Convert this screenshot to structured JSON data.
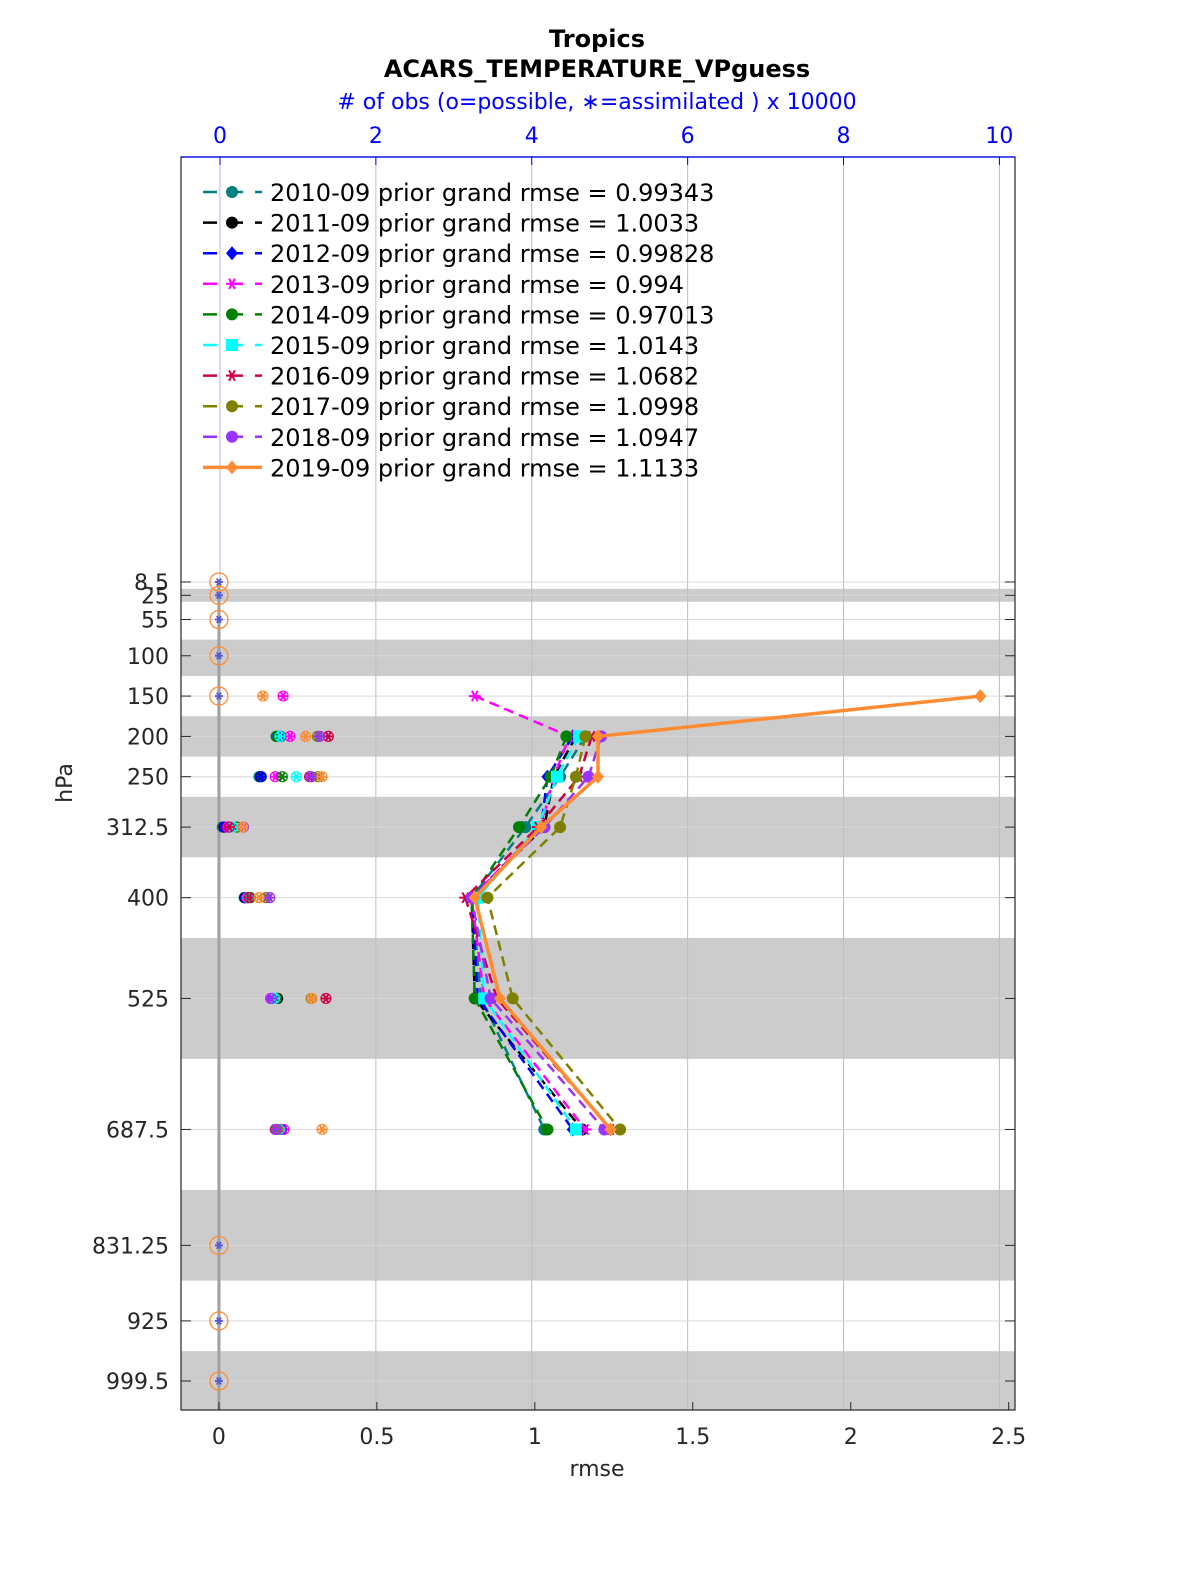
{
  "chart_data": {
    "type": "line",
    "title": "Tropics",
    "subtitle": "ACARS_TEMPERATURE_VPguess",
    "top_axis_label": "# of obs (o=possible, ∗=assimilated ) x 10000",
    "xlabel": "rmse",
    "ylabel": "hPa",
    "xlim": [
      -0.12,
      2.52
    ],
    "top_xlim": [
      -0.5,
      10.2
    ],
    "x_ticks": [
      "0",
      "0.5",
      "1",
      "1.5",
      "2",
      "2.5"
    ],
    "top_ticks": [
      "0",
      "2",
      "4",
      "6",
      "8",
      "10"
    ],
    "y_ticks": [
      "8.5",
      "25",
      "55",
      "100",
      "150",
      "200",
      "250",
      "312.5",
      "400",
      "525",
      "687.5",
      "831.25",
      "925",
      "999.5"
    ],
    "levels": [
      8.5,
      25,
      55,
      100,
      150,
      200,
      250,
      312.5,
      400,
      525,
      687.5,
      831.25,
      925,
      999.5
    ],
    "gray_bands": [
      [
        17,
        33
      ],
      [
        80,
        125
      ],
      [
        175,
        225
      ],
      [
        275,
        350
      ],
      [
        450,
        600
      ],
      [
        762.5,
        875
      ],
      [
        962.5,
        1037
      ]
    ],
    "legend_position": "top-left",
    "grid": true,
    "series": [
      {
        "name": "2010-09 prior grand rmse = 0.99343",
        "color": "#008080",
        "marker": "circle",
        "levels": [
          200,
          250,
          312.5,
          400,
          525,
          687.5
        ],
        "rmse": [
          1.16,
          1.08,
          0.97,
          0.8,
          0.83,
          1.03
        ],
        "possible": [
          0.76,
          0.5,
          0.03,
          0.31,
          0.73,
          0.77
        ],
        "assimilated": [
          0.76,
          0.5,
          0.03,
          0.31,
          0.73,
          0.77
        ]
      },
      {
        "name": "2011-09 prior grand rmse = 1.0033",
        "color": "#000000",
        "marker": "circle",
        "levels": [
          200,
          250,
          312.5,
          400,
          525,
          687.5
        ],
        "rmse": [
          1.13,
          1.06,
          1.03,
          0.8,
          0.81,
          1.15
        ],
        "possible": [
          0.78,
          0.52,
          0.05,
          0.32,
          0.74,
          0.78
        ],
        "assimilated": [
          0.78,
          0.52,
          0.05,
          0.32,
          0.74,
          0.78
        ]
      },
      {
        "name": "2012-09 prior grand rmse = 0.99828",
        "color": "#0000ff",
        "marker": "diamond",
        "levels": [
          200,
          250,
          312.5,
          400,
          525,
          687.5
        ],
        "rmse": [
          1.12,
          1.04,
          1.02,
          0.8,
          0.82,
          1.12
        ],
        "possible": [
          0.74,
          0.53,
          0.06,
          0.33,
          0.68,
          0.79
        ],
        "assimilated": [
          0.74,
          0.53,
          0.06,
          0.33,
          0.68,
          0.79
        ]
      },
      {
        "name": "2013-09 prior grand rmse = 0.994",
        "color": "#ff00ff",
        "marker": "star",
        "levels": [
          150,
          200,
          250,
          312.5,
          400,
          525,
          687.5
        ],
        "rmse": [
          0.81,
          1.11,
          1.06,
          1.02,
          0.8,
          0.84,
          1.16
        ],
        "possible": [
          0.81,
          0.9,
          0.71,
          0.1,
          0.35,
          0.65,
          0.82
        ],
        "assimilated": [
          0.81,
          0.9,
          0.71,
          0.1,
          0.35,
          0.65,
          0.82
        ]
      },
      {
        "name": "2014-09 prior grand rmse = 0.97013",
        "color": "#008000",
        "marker": "circle",
        "levels": [
          200,
          250,
          312.5,
          400,
          525,
          687.5
        ],
        "rmse": [
          1.1,
          1.05,
          0.95,
          0.8,
          0.81,
          1.04
        ],
        "possible": [
          0.72,
          0.8,
          0.22,
          0.39,
          0.72,
          0.73
        ],
        "assimilated": [
          0.72,
          0.8,
          0.22,
          0.39,
          0.72,
          0.73
        ]
      },
      {
        "name": "2015-09 prior grand rmse = 1.0143",
        "color": "#00ffff",
        "marker": "square",
        "levels": [
          200,
          250,
          312.5,
          400,
          525,
          687.5
        ],
        "rmse": [
          1.14,
          1.07,
          1.01,
          0.82,
          0.84,
          1.13
        ],
        "possible": [
          0.77,
          0.98,
          0.16,
          0.36,
          0.7,
          0.76
        ],
        "assimilated": [
          0.77,
          0.98,
          0.16,
          0.36,
          0.7,
          0.76
        ]
      },
      {
        "name": "2016-09 prior grand rmse = 1.0682",
        "color": "#cc0044",
        "marker": "asterisk",
        "levels": [
          200,
          250,
          312.5,
          400,
          525,
          687.5
        ],
        "rmse": [
          1.18,
          1.14,
          1.01,
          0.78,
          0.88,
          1.24
        ],
        "possible": [
          1.39,
          1.15,
          0.12,
          0.37,
          1.36,
          0.71
        ],
        "assimilated": [
          1.39,
          1.15,
          0.12,
          0.37,
          1.36,
          0.71
        ]
      },
      {
        "name": "2017-09 prior grand rmse = 1.0998",
        "color": "#808000",
        "marker": "circle",
        "levels": [
          200,
          250,
          312.5,
          400,
          525,
          687.5
        ],
        "rmse": [
          1.16,
          1.13,
          1.08,
          0.85,
          0.93,
          1.27
        ],
        "possible": [
          1.25,
          1.26,
          0.3,
          0.59,
          1.17,
          0.74
        ],
        "assimilated": [
          1.25,
          1.26,
          0.3,
          0.59,
          1.17,
          0.74
        ]
      },
      {
        "name": "2018-09 prior grand rmse = 1.0947",
        "color": "#9933ff",
        "marker": "circle",
        "levels": [
          200,
          250,
          312.5,
          400,
          525,
          687.5
        ],
        "rmse": [
          1.21,
          1.17,
          1.03,
          0.8,
          0.86,
          1.22
        ],
        "possible": [
          1.28,
          1.17,
          0.3,
          0.64,
          0.66,
          0.72
        ],
        "assimilated": [
          1.28,
          1.17,
          0.3,
          0.64,
          0.66,
          0.72
        ]
      },
      {
        "name": "2019-09 prior grand rmse = 1.1133",
        "color": "#ff8c33",
        "marker": "diamond",
        "levels": [
          150,
          200,
          250,
          312.5,
          400,
          525,
          687.5
        ],
        "rmse": [
          2.41,
          1.2,
          1.2,
          1.02,
          0.81,
          0.89,
          1.24
        ],
        "possible": [
          0.55,
          1.1,
          1.31,
          0.29,
          0.5,
          1.18,
          1.31
        ],
        "assimilated": [
          0.55,
          1.1,
          1.31,
          0.29,
          0.5,
          1.18,
          1.31
        ]
      }
    ]
  }
}
